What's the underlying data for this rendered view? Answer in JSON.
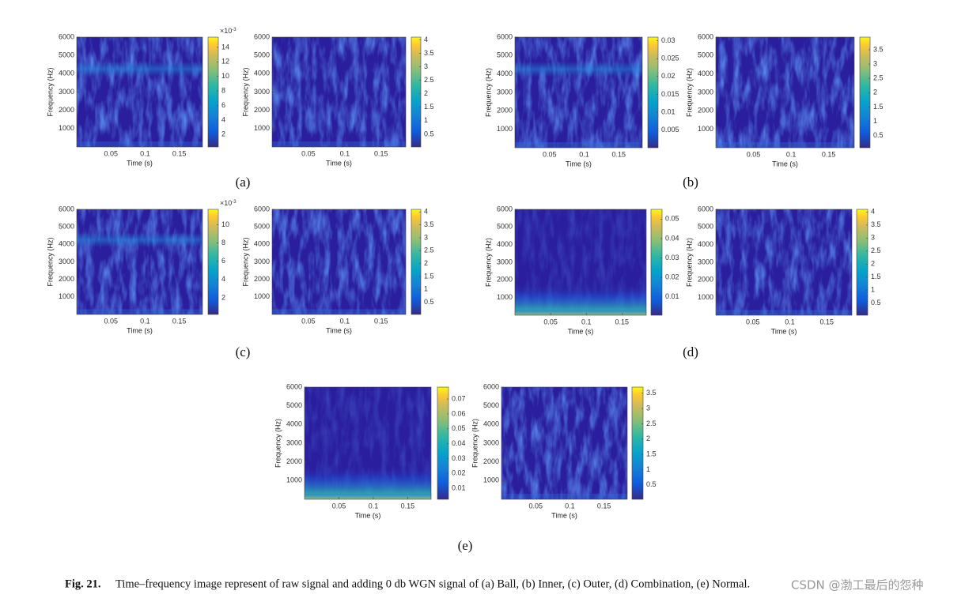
{
  "panels": [
    {
      "label": "(a)",
      "plots": [
        {
          "y_label": "Frequency (Hz)",
          "x_label": "Time (s)",
          "xlim": [
            0,
            0.184
          ],
          "ylim": [
            0,
            6000
          ],
          "xticks": [
            0.05,
            0.1,
            0.15
          ],
          "yticks": [
            1000,
            2000,
            3000,
            4000,
            5000,
            6000
          ],
          "clim": [
            0.3,
            15.4
          ],
          "cticks": [
            2,
            4,
            6,
            8,
            10,
            12,
            14
          ],
          "c_exponent": {
            "base": "×10",
            "power": "-3"
          }
        },
        {
          "y_label": "Frequency (Hz)",
          "x_label": "Time (s)",
          "xlim": [
            0,
            0.184
          ],
          "ylim": [
            0,
            6000
          ],
          "xticks": [
            0.05,
            0.1,
            0.15
          ],
          "yticks": [
            1000,
            2000,
            3000,
            4000,
            5000,
            6000
          ],
          "clim": [
            0.03,
            4.1
          ],
          "cticks": [
            0.5,
            1,
            1.5,
            2,
            2.5,
            3,
            3.5,
            4
          ]
        }
      ]
    },
    {
      "label": "(b)",
      "plots": [
        {
          "y_label": "Frequency (Hz)",
          "x_label": "Time (s)",
          "xlim": [
            0,
            0.184
          ],
          "ylim": [
            0,
            6000
          ],
          "xticks": [
            0.05,
            0.1,
            0.15
          ],
          "yticks": [
            1000,
            2000,
            3000,
            4000,
            5000,
            6000
          ],
          "clim": [
            0.0001,
            0.031
          ],
          "cticks": [
            0.005,
            0.01,
            0.015,
            0.02,
            0.025,
            0.03
          ]
        },
        {
          "y_label": "Frequency (Hz)",
          "x_label": "Time (s)",
          "xlim": [
            0,
            0.184
          ],
          "ylim": [
            0,
            6000
          ],
          "xticks": [
            0.05,
            0.1,
            0.15
          ],
          "yticks": [
            1000,
            2000,
            3000,
            4000,
            5000,
            6000
          ],
          "clim": [
            0.08,
            3.94
          ],
          "cticks": [
            0.5,
            1,
            1.5,
            2,
            2.5,
            3,
            3.5
          ]
        }
      ]
    },
    {
      "label": "(c)",
      "plots": [
        {
          "y_label": "Frequency (Hz)",
          "x_label": "Time (s)",
          "xlim": [
            0,
            0.184
          ],
          "ylim": [
            0,
            6000
          ],
          "xticks": [
            0.05,
            0.1,
            0.15
          ],
          "yticks": [
            1000,
            2000,
            3000,
            4000,
            5000,
            6000
          ],
          "clim": [
            0.17,
            11.7
          ],
          "cticks": [
            2,
            4,
            6,
            8,
            10
          ],
          "c_exponent": {
            "base": "×10",
            "power": "-3"
          }
        },
        {
          "y_label": "Frequency (Hz)",
          "x_label": "Time (s)",
          "xlim": [
            0,
            0.184
          ],
          "ylim": [
            0,
            6000
          ],
          "xticks": [
            0.05,
            0.1,
            0.15
          ],
          "yticks": [
            1000,
            2000,
            3000,
            4000,
            5000,
            6000
          ],
          "clim": [
            0.03,
            4.1
          ],
          "cticks": [
            0.5,
            1,
            1.5,
            2,
            2.5,
            3,
            3.5,
            4
          ]
        }
      ]
    },
    {
      "label": "(d)",
      "plots": [
        {
          "y_label": "Frequency (Hz)",
          "x_label": "Time (s)",
          "xlim": [
            0,
            0.184
          ],
          "ylim": [
            0,
            6000
          ],
          "xticks": [
            0.05,
            0.1,
            0.15
          ],
          "yticks": [
            1000,
            2000,
            3000,
            4000,
            5000,
            6000
          ],
          "clim": [
            0.0006,
            0.055
          ],
          "cticks": [
            0.01,
            0.02,
            0.03,
            0.04,
            0.05
          ]
        },
        {
          "y_label": "Frequency (Hz)",
          "x_label": "Time (s)",
          "xlim": [
            0,
            0.184
          ],
          "ylim": [
            0,
            6000
          ],
          "xticks": [
            0.05,
            0.1,
            0.15
          ],
          "yticks": [
            1000,
            2000,
            3000,
            4000,
            5000,
            6000
          ],
          "clim": [
            0.04,
            4.1
          ],
          "cticks": [
            0.5,
            1,
            1.5,
            2,
            2.5,
            3,
            3.5,
            4
          ]
        }
      ]
    },
    {
      "label": "(e)",
      "plots": [
        {
          "y_label": "Frequency (Hz)",
          "x_label": "Time (s)",
          "xlim": [
            0,
            0.184
          ],
          "ylim": [
            0,
            6000
          ],
          "xticks": [
            0.05,
            0.1,
            0.15
          ],
          "yticks": [
            1000,
            2000,
            3000,
            4000,
            5000,
            6000
          ],
          "clim": [
            0.0026,
            0.078
          ],
          "cticks": [
            0.01,
            0.02,
            0.03,
            0.04,
            0.05,
            0.06,
            0.07
          ]
        },
        {
          "y_label": "Frequency (Hz)",
          "x_label": "Time (s)",
          "xlim": [
            0,
            0.184
          ],
          "ylim": [
            0,
            6000
          ],
          "xticks": [
            0.05,
            0.1,
            0.15
          ],
          "yticks": [
            1000,
            2000,
            3000,
            4000,
            5000,
            6000
          ],
          "clim": [
            0.03,
            3.7
          ],
          "cticks": [
            0.5,
            1,
            1.5,
            2,
            2.5,
            3,
            3.5
          ]
        }
      ]
    }
  ],
  "caption": {
    "label": "Fig. 21.",
    "text": "Time–frequency image represent of raw signal and adding 0 db WGN signal of (a) Ball, (b) Inner, (c) Outer, (d) Combination, (e) Normal."
  },
  "watermark": "CSDN @渤工最后的怨种"
}
